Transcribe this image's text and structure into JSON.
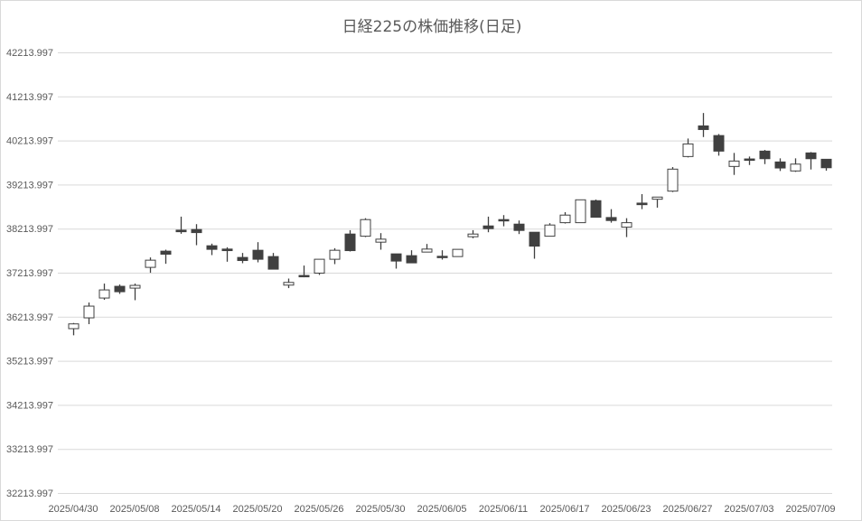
{
  "chart_data": {
    "type": "candlestick",
    "title": "日経225の株価推移(日足)",
    "xlabel": "",
    "ylabel": "",
    "ylim": [
      32213.997,
      42213.997
    ],
    "yticks": [
      "32213.997",
      "33213.997",
      "34213.997",
      "35213.997",
      "36213.997",
      "37213.997",
      "38213.997",
      "39213.997",
      "40213.997",
      "41213.997",
      "42213.997"
    ],
    "xtick_labels": [
      "2025/04/30",
      "2025/05/08",
      "2025/05/14",
      "2025/05/20",
      "2025/05/26",
      "2025/05/30",
      "2025/06/05",
      "2025/06/11",
      "2025/06/17",
      "2025/06/23",
      "2025/06/27",
      "2025/07/03",
      "2025/07/09"
    ],
    "grid": true,
    "colors": {
      "up_fill": "#ffffff",
      "down_fill": "#404040",
      "outline": "#404040",
      "grid": "#d9d9d9"
    },
    "dates": [
      "2025/04/30",
      "2025/05/01",
      "2025/05/02",
      "2025/05/07",
      "2025/05/08",
      "2025/05/09",
      "2025/05/12",
      "2025/05/13",
      "2025/05/14",
      "2025/05/15",
      "2025/05/16",
      "2025/05/19",
      "2025/05/20",
      "2025/05/21",
      "2025/05/22",
      "2025/05/23",
      "2025/05/26",
      "2025/05/27",
      "2025/05/28",
      "2025/05/29",
      "2025/05/30",
      "2025/06/02",
      "2025/06/03",
      "2025/06/04",
      "2025/06/05",
      "2025/06/06",
      "2025/06/09",
      "2025/06/10",
      "2025/06/11",
      "2025/06/12",
      "2025/06/13",
      "2025/06/16",
      "2025/06/17",
      "2025/06/18",
      "2025/06/19",
      "2025/06/20",
      "2025/06/23",
      "2025/06/24",
      "2025/06/25",
      "2025/06/26",
      "2025/06/27",
      "2025/06/30",
      "2025/07/01",
      "2025/07/02",
      "2025/07/03",
      "2025/07/04",
      "2025/07/07",
      "2025/07/08",
      "2025/07/09",
      "2025/07/10"
    ],
    "ohlc": [
      [
        35944,
        36073,
        35793,
        36052
      ],
      [
        36189,
        36537,
        36046,
        36455
      ],
      [
        36639,
        36967,
        36598,
        36823
      ],
      [
        36905,
        36946,
        36733,
        36782
      ],
      [
        36864,
        36967,
        36590,
        36926
      ],
      [
        37335,
        37560,
        37212,
        37498
      ],
      [
        37703,
        37736,
        37416,
        37633
      ],
      [
        38179,
        38486,
        38097,
        38144
      ],
      [
        38194,
        38316,
        37838,
        38124
      ],
      [
        37825,
        37873,
        37613,
        37744
      ],
      [
        37750,
        37791,
        37463,
        37715
      ],
      [
        37560,
        37662,
        37429,
        37490
      ],
      [
        37723,
        37907,
        37449,
        37519
      ],
      [
        37580,
        37662,
        37294,
        37294
      ],
      [
        36932,
        37081,
        36864,
        36993
      ],
      [
        37151,
        37376,
        37110,
        37122
      ],
      [
        37204,
        37519,
        37163,
        37519
      ],
      [
        37519,
        37770,
        37408,
        37723
      ],
      [
        38091,
        38179,
        37695,
        37715
      ],
      [
        38042,
        38451,
        38022,
        38419
      ],
      [
        37907,
        38112,
        37736,
        37975
      ],
      [
        37641,
        37641,
        37306,
        37478
      ],
      [
        37600,
        37723,
        37437,
        37437
      ],
      [
        37682,
        37866,
        37682,
        37750
      ],
      [
        37586,
        37723,
        37511,
        37560
      ],
      [
        37580,
        37744,
        37580,
        37744
      ],
      [
        38030,
        38179,
        37995,
        38091
      ],
      [
        38275,
        38486,
        38132,
        38214
      ],
      [
        38419,
        38521,
        38267,
        38390
      ],
      [
        38316,
        38398,
        38091,
        38173
      ],
      [
        38132,
        38132,
        37531,
        37817
      ],
      [
        38042,
        38337,
        38042,
        38296
      ],
      [
        38349,
        38588,
        38329,
        38521
      ],
      [
        38349,
        38868,
        38349,
        38868
      ],
      [
        38848,
        38874,
        38472,
        38472
      ],
      [
        38466,
        38656,
        38349,
        38398
      ],
      [
        38247,
        38451,
        38022,
        38349
      ],
      [
        38793,
        38997,
        38656,
        38758
      ],
      [
        38881,
        38930,
        38690,
        38930
      ],
      [
        39065,
        39611,
        39044,
        39564
      ],
      [
        39850,
        40259,
        39830,
        40136
      ],
      [
        40545,
        40838,
        40292,
        40463
      ],
      [
        40326,
        40361,
        39870,
        39973
      ],
      [
        39625,
        39932,
        39433,
        39748
      ],
      [
        39795,
        39850,
        39658,
        39768
      ],
      [
        39973,
        40000,
        39678,
        39801
      ],
      [
        39727,
        39809,
        39522,
        39590
      ],
      [
        39523,
        39809,
        39502,
        39678
      ],
      [
        39932,
        39952,
        39556,
        39801
      ],
      [
        39788,
        39788,
        39529,
        39596
      ]
    ]
  }
}
